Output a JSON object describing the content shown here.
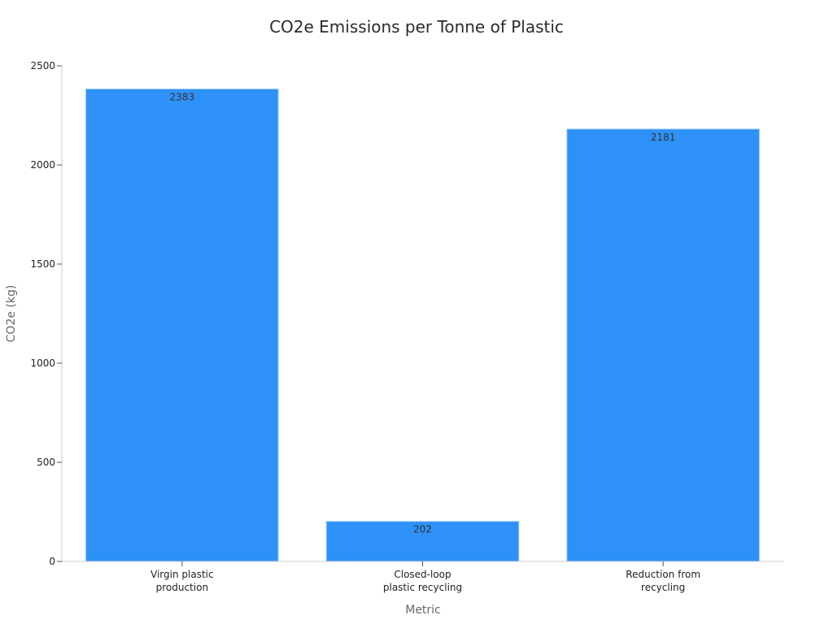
{
  "chart_data": {
    "type": "bar",
    "title": "CO2e Emissions per Tonne of Plastic",
    "xlabel": "Metric",
    "ylabel": "CO2e (kg)",
    "categories": [
      [
        "Virgin plastic",
        "production"
      ],
      [
        "Closed-loop",
        "plastic recycling"
      ],
      [
        "Reduction from",
        "recycling"
      ]
    ],
    "values": [
      2383,
      202,
      2181
    ],
    "ylim": [
      0,
      2500
    ],
    "yticks": [
      0,
      500,
      1000,
      1500,
      2000,
      2500
    ],
    "grid": false,
    "legend": "none",
    "colors": {
      "bar": "#2e91f8",
      "bar_edge": "#9ccaf9",
      "axis": "#cccccc",
      "tick": "#555555"
    }
  }
}
